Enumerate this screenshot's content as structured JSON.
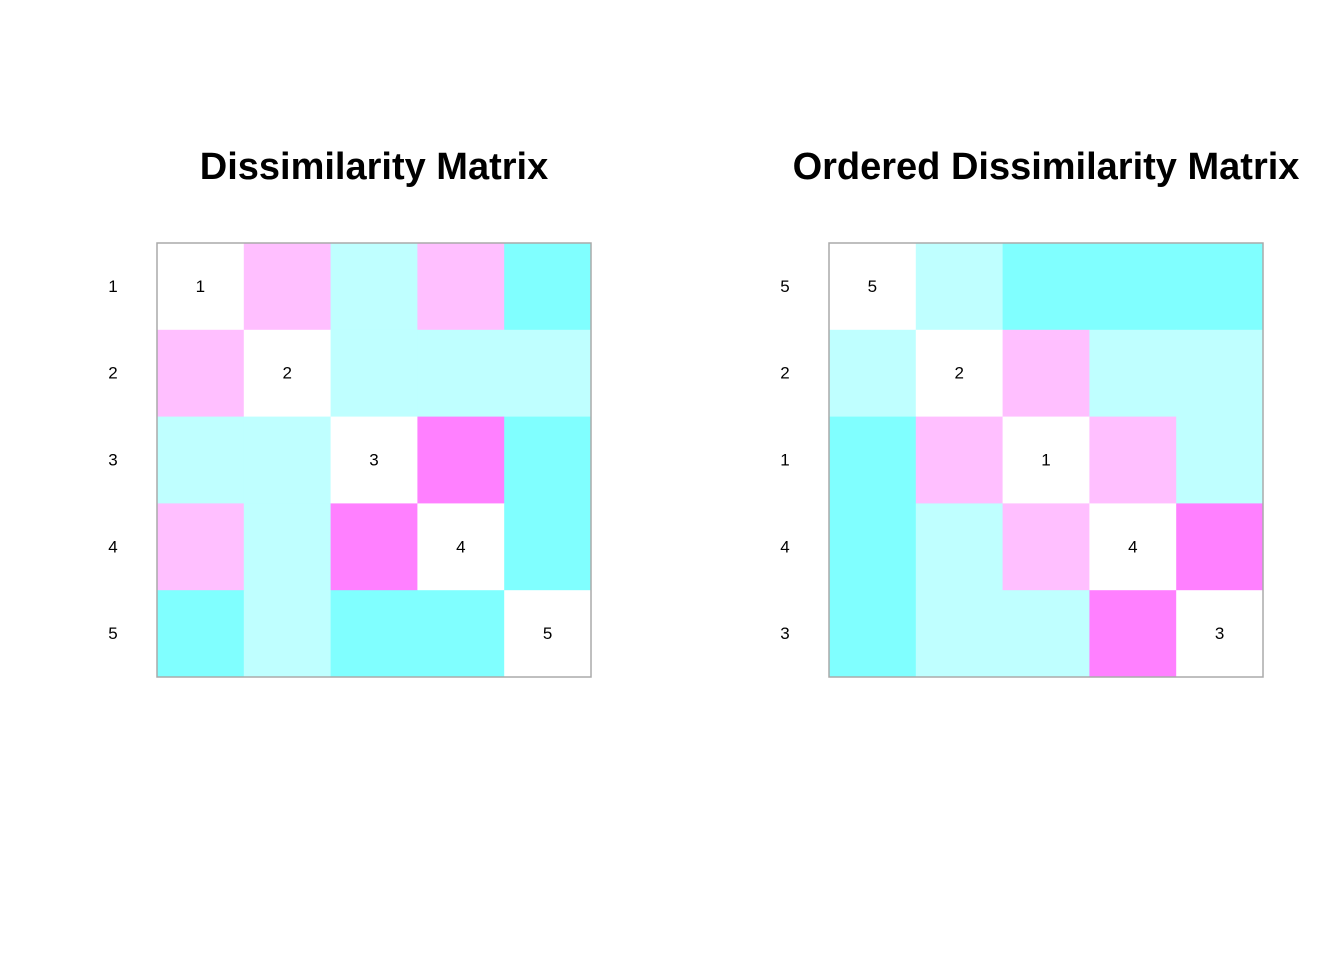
{
  "palette": {
    "same": "#ffffff",
    "low_1": "#ffbfff",
    "low_2": "#ff80ff",
    "high_1": "#bfffff",
    "high_2": "#80ffff",
    "frame": "#aaaaaa"
  },
  "chart_data": [
    {
      "type": "heatmap",
      "title": "Dissimilarity Matrix",
      "row_labels": [
        "1",
        "2",
        "3",
        "4",
        "5"
      ],
      "diagonal_labels": [
        "1",
        "2",
        "3",
        "4",
        "5"
      ],
      "color_key": [
        "same",
        "low_1",
        "low_2",
        "high_1",
        "high_2"
      ],
      "cells": [
        [
          "same",
          "low_1",
          "high_1",
          "low_1",
          "high_2"
        ],
        [
          "low_1",
          "same",
          "high_1",
          "high_1",
          "high_1"
        ],
        [
          "high_1",
          "high_1",
          "same",
          "low_2",
          "high_2"
        ],
        [
          "low_1",
          "high_1",
          "low_2",
          "same",
          "high_2"
        ],
        [
          "high_2",
          "high_1",
          "high_2",
          "high_2",
          "same"
        ]
      ]
    },
    {
      "type": "heatmap",
      "title": "Ordered Dissimilarity Matrix",
      "row_labels": [
        "5",
        "2",
        "1",
        "4",
        "3"
      ],
      "diagonal_labels": [
        "5",
        "2",
        "1",
        "4",
        "3"
      ],
      "color_key": [
        "same",
        "low_1",
        "low_2",
        "high_1",
        "high_2"
      ],
      "cells": [
        [
          "same",
          "high_1",
          "high_2",
          "high_2",
          "high_2"
        ],
        [
          "high_1",
          "same",
          "low_1",
          "high_1",
          "high_1"
        ],
        [
          "high_2",
          "low_1",
          "same",
          "low_1",
          "high_1"
        ],
        [
          "high_2",
          "high_1",
          "low_1",
          "same",
          "low_2"
        ],
        [
          "high_2",
          "high_1",
          "high_1",
          "low_2",
          "same"
        ]
      ]
    }
  ]
}
